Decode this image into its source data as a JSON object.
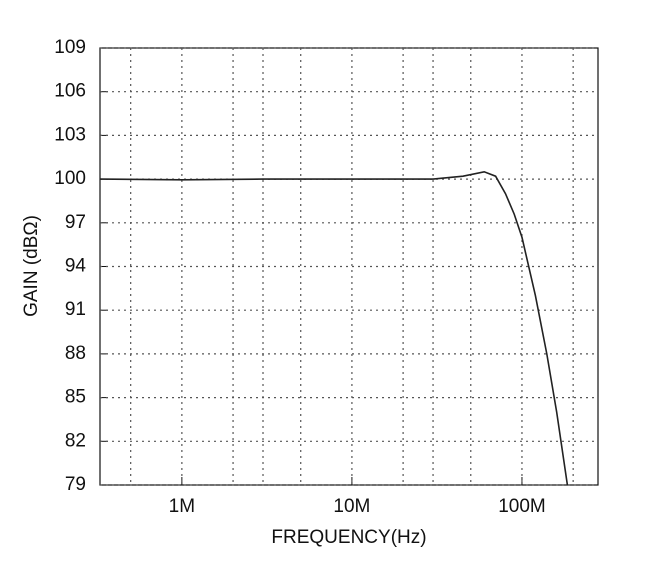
{
  "chart_data": {
    "type": "line",
    "x_label": "FREQUENCY(Hz)",
    "y_label": "GAIN (dBΩ)",
    "x_scale": "log",
    "xlim": [
      330000,
      280000000
    ],
    "xticks": [
      {
        "value": 1000000,
        "label": "1M"
      },
      {
        "value": 10000000,
        "label": "10M"
      },
      {
        "value": 100000000,
        "label": "100M"
      }
    ],
    "x_minor_grid": [
      500000,
      2000000,
      3000000,
      5000000,
      20000000,
      30000000,
      50000000,
      200000000
    ],
    "ylim": [
      79,
      109
    ],
    "yticks": [
      79,
      82,
      85,
      88,
      91,
      94,
      97,
      100,
      103,
      106,
      109
    ],
    "grid": true,
    "series": [
      {
        "color": "#222222",
        "x": [
          330000,
          1000000,
          3000000,
          10000000,
          30000000,
          45000000,
          60000000,
          70000000,
          80000000,
          90000000,
          100000000,
          120000000,
          140000000,
          160000000,
          185000000
        ],
        "values": [
          100,
          99.95,
          100,
          100,
          100,
          100.2,
          100.5,
          100.2,
          99,
          97.6,
          96,
          92,
          88,
          84,
          79
        ]
      }
    ]
  }
}
